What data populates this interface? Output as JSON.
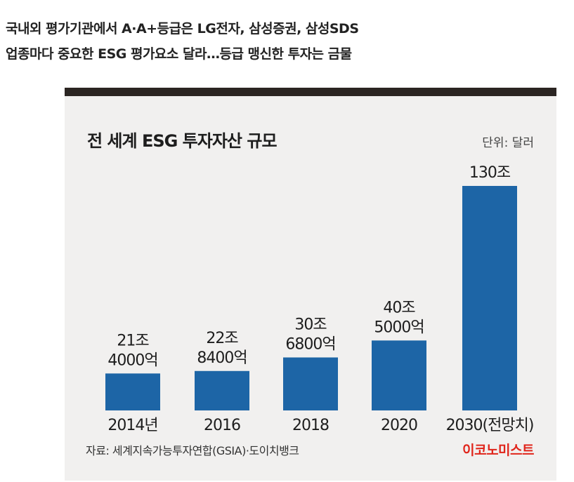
{
  "headline": {
    "line1": "국내외 평가기관에서 A·A+등급은 LG전자, 삼성증권, 삼성SDS",
    "line2": "업종마다 중요한 ESG 평가요소 달라…등급 맹신한 투자는 금물"
  },
  "colors": {
    "bar": "#1d65a6",
    "card_bg": "#f1f0ef",
    "top_rule": "#2b2522",
    "brand": "#e0251b"
  },
  "chart_data": {
    "type": "bar",
    "title": "전 세계 ESG 투자자산 규모",
    "unit_label": "단위: 달러",
    "categories": [
      "2014년",
      "2016",
      "2018",
      "2020",
      "2030(전망치)"
    ],
    "values": [
      21.4,
      22.84,
      30.68,
      40.5,
      130
    ],
    "value_labels": [
      [
        "21조",
        "4000억"
      ],
      [
        "22조",
        "8400억"
      ],
      [
        "30조",
        "6800억"
      ],
      [
        "40조",
        "5000억"
      ],
      [
        "130조"
      ]
    ],
    "ylim": [
      0,
      130
    ],
    "grid": false,
    "legend": "none"
  },
  "source": "자료: 세계지속가능투자연합(GSIA)·도이치뱅크",
  "brand": "이코노미스트"
}
